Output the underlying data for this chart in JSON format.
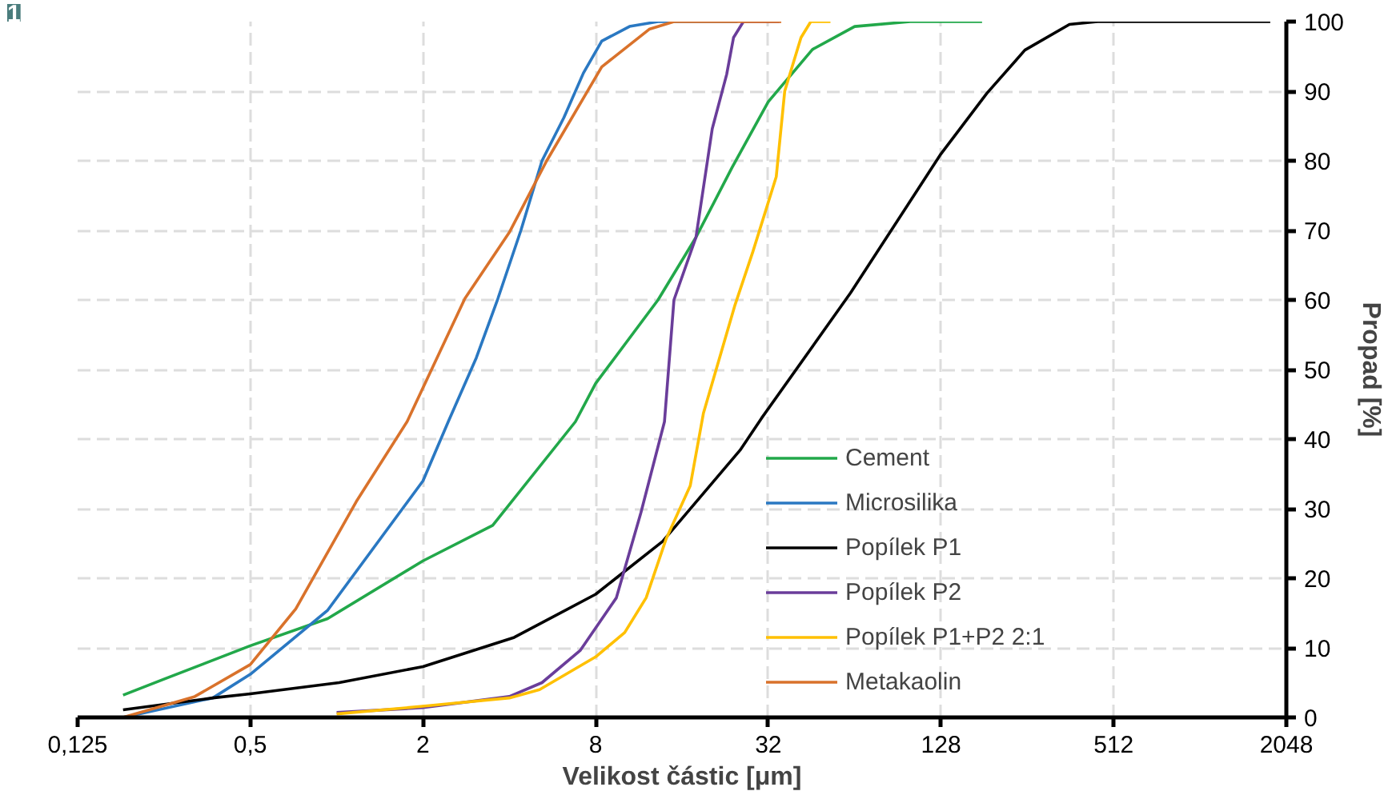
{
  "chart_data": {
    "type": "line",
    "xlabel": "Velikost částic [μm]",
    "ylabel": "Propad [%]",
    "annotations": [
      "1"
    ],
    "log": "x",
    "grid": true,
    "legend": "bottom right",
    "line_style": "solid",
    "marker": "none",
    "xlim": [
      0.125,
      2048
    ],
    "xticks": [
      {
        "value": 0.125,
        "label": "0,125"
      },
      {
        "value": 0.5,
        "label": "0,5"
      },
      2,
      8,
      32,
      128,
      512,
      2048
    ],
    "ylim": [
      0,
      100
    ],
    "yticks": [
      0,
      10,
      20,
      30,
      40,
      50,
      60,
      70,
      80,
      90,
      100
    ],
    "series": [
      {
        "name": "Cement",
        "color": "#22a84a",
        "x": [
          0.18,
          0.25,
          0.5,
          0.93,
          2,
          3.5,
          6.8,
          8,
          13.2,
          17.9,
          23.9,
          32,
          45.6,
          64,
          100,
          178
        ],
        "values": [
          3.2,
          5.5,
          10.3,
          14.2,
          22.5,
          27.6,
          42.5,
          48,
          60,
          69,
          79,
          88.5,
          96,
          99.3,
          100,
          100
        ]
      },
      {
        "name": "Microsilika",
        "color": "#2a78c2",
        "x": [
          0.18,
          0.37,
          0.5,
          0.93,
          2,
          2.45,
          3.07,
          3.65,
          4.39,
          5.2,
          6.2,
          7.25,
          8.4,
          10.5,
          13.2,
          25
        ],
        "values": [
          0,
          2.8,
          6.2,
          15.4,
          34,
          42.5,
          51.7,
          60.2,
          70,
          80,
          86.2,
          92.6,
          97.2,
          99.3,
          100,
          100
        ]
      },
      {
        "name": "Popílek P1",
        "color": "#000000",
        "x": [
          0.18,
          0.37,
          0.5,
          1.02,
          2,
          4.16,
          8,
          13.7,
          25.5,
          30.3,
          61.9,
          128,
          185,
          251,
          359,
          450,
          1800
        ],
        "values": [
          1.1,
          2.8,
          3.4,
          5,
          7.3,
          11.5,
          17.7,
          25.3,
          38.4,
          43,
          61,
          81,
          89.7,
          95.9,
          99.6,
          100,
          100
        ]
      },
      {
        "name": "Popílek P2",
        "color": "#6a3d9a",
        "x": [
          1.0,
          2,
          4.0,
          5.2,
          7.06,
          9.45,
          11.5,
          13.9,
          15,
          17.9,
          20.4,
          22.9,
          24.2,
          26.2,
          35
        ],
        "values": [
          0.7,
          1.4,
          3,
          5,
          9.6,
          17.2,
          29.4,
          42.5,
          60,
          69,
          84.6,
          92.4,
          97.7,
          100,
          100
        ]
      },
      {
        "name": "Popílek P1+P2 2:1",
        "color": "#ffc000",
        "x": [
          1.0,
          2,
          4.0,
          5.1,
          8,
          10.1,
          12,
          14.1,
          17.1,
          19,
          24.5,
          28.3,
          34.1,
          36.5,
          41.6,
          45,
          52.7
        ],
        "values": [
          0.5,
          1.6,
          2.8,
          4,
          8.7,
          12.2,
          17.2,
          25.7,
          33.3,
          43.7,
          59.3,
          67,
          77.7,
          90,
          97.7,
          100,
          100
        ]
      },
      {
        "name": "Metakaolin",
        "color": "#d9722b",
        "x": [
          0.18,
          0.32,
          0.5,
          0.72,
          1.17,
          1.76,
          2.8,
          4.0,
          5.4,
          8.4,
          12.3,
          15,
          35.5
        ],
        "values": [
          0,
          3,
          7.6,
          15.6,
          31,
          42.5,
          60.2,
          69.7,
          80,
          93.5,
          98.9,
          100,
          100
        ]
      }
    ]
  }
}
